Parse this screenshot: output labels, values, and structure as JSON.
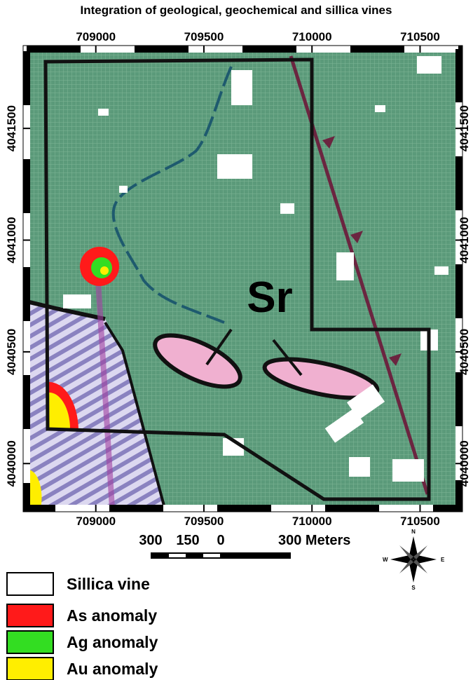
{
  "title": "Integration of geological, geochemical and sillica vines",
  "map": {
    "xlim": [
      708680,
      710680
    ],
    "ylim": [
      4039800,
      4041855
    ],
    "xticks": [
      709000,
      709500,
      710000,
      710500
    ],
    "yticks": [
      4040000,
      4040500,
      4041000,
      4041500
    ],
    "label": "Sr"
  },
  "scale_bar": {
    "labels": [
      "300",
      "150",
      "0",
      "300 Meters"
    ]
  },
  "compass": {
    "n": "N",
    "s": "S",
    "e": "E",
    "w": "W"
  },
  "legend": [
    {
      "label": "Sillica vine",
      "color": "#ffffff"
    },
    {
      "label": "As anomaly",
      "color": "#ff1a1a"
    },
    {
      "label": "Ag anomaly",
      "color": "#33dd22"
    },
    {
      "label": "Au anomaly",
      "color": "#ffee00"
    }
  ]
}
